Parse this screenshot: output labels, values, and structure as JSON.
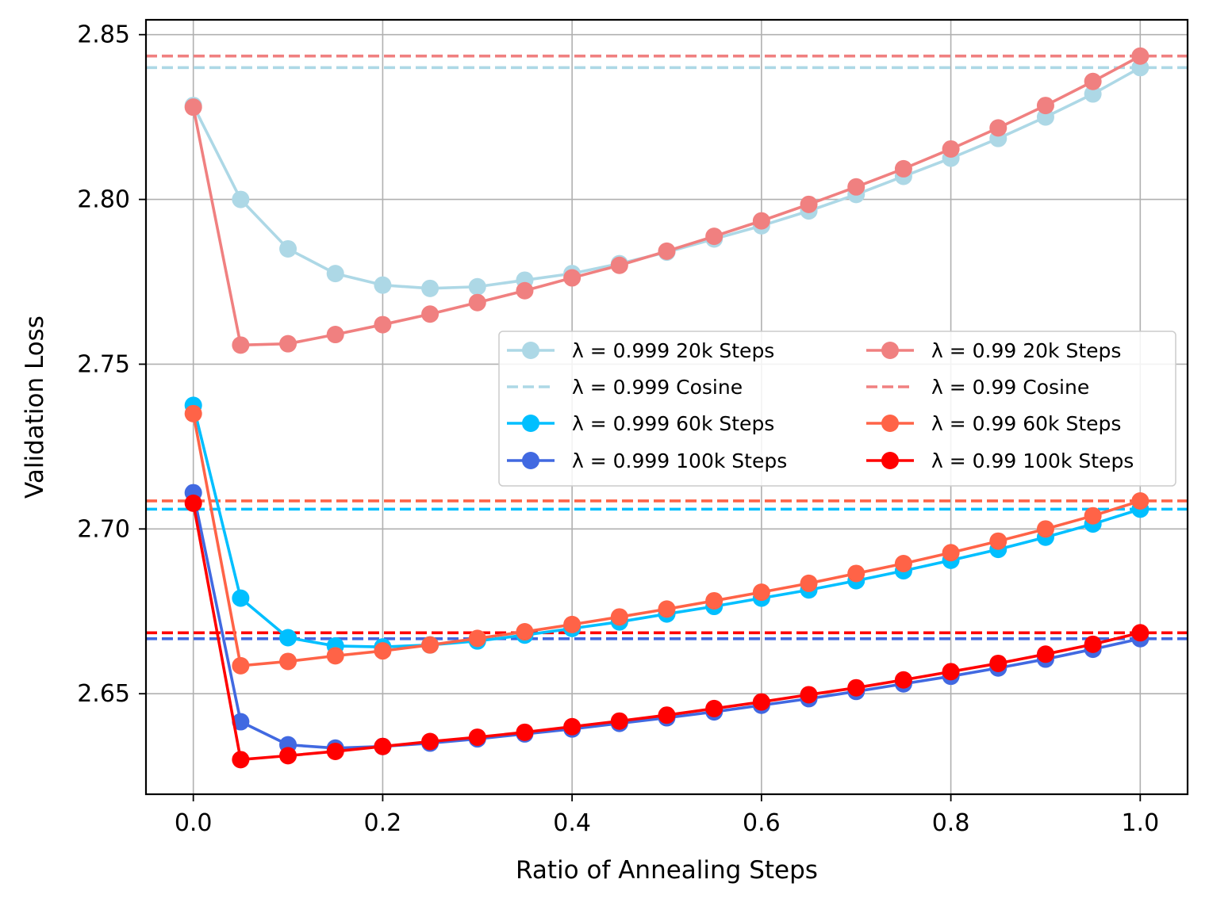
{
  "chart_data": {
    "type": "line",
    "title": "",
    "xlabel": "Ratio of Annealing Steps",
    "ylabel": "Validation Loss",
    "xlim": [
      -0.05,
      1.05
    ],
    "ylim": [
      2.6195,
      2.8545
    ],
    "grid": true,
    "legend_position": "center-right",
    "legend_columns": 2,
    "x_ticks": [
      0.0,
      0.2,
      0.4,
      0.6,
      0.8,
      1.0
    ],
    "x_tick_labels": [
      "0.0",
      "0.2",
      "0.4",
      "0.6",
      "0.8",
      "1.0"
    ],
    "y_ticks": [
      2.65,
      2.7,
      2.75,
      2.8,
      2.85
    ],
    "y_tick_labels": [
      "2.65",
      "2.70",
      "2.75",
      "2.80",
      "2.85"
    ],
    "x": [
      0.0,
      0.05,
      0.1,
      0.15,
      0.2,
      0.25,
      0.3,
      0.35,
      0.4,
      0.45,
      0.5,
      0.55,
      0.6,
      0.65,
      0.7,
      0.75,
      0.8,
      0.85,
      0.9,
      0.95,
      1.0
    ],
    "series": [
      {
        "name": "λ = 0.999 20k Steps",
        "lambda": "0.999",
        "suffix": "20k Steps",
        "color": "#add8e6",
        "style": "line-marker",
        "values": [
          2.8285,
          2.8,
          2.785,
          2.7775,
          2.774,
          2.773,
          2.7735,
          2.7755,
          2.7775,
          2.7805,
          2.784,
          2.788,
          2.792,
          2.7965,
          2.8015,
          2.807,
          2.8125,
          2.8185,
          2.825,
          2.832,
          2.84
        ]
      },
      {
        "name": "λ = 0.99 20k Steps",
        "lambda": "0.99",
        "suffix": "20k Steps",
        "color": "#f08080",
        "style": "line-marker",
        "values": [
          2.828,
          2.7558,
          2.7562,
          2.759,
          2.762,
          2.7652,
          2.7687,
          2.7723,
          2.7762,
          2.78,
          2.7843,
          2.7888,
          2.7935,
          2.7985,
          2.8038,
          2.8093,
          2.8153,
          2.8217,
          2.8285,
          2.8358,
          2.8435
        ]
      },
      {
        "name": "λ = 0.999 Cosine",
        "lambda": "0.999",
        "suffix": "Cosine",
        "color": "#add8e6",
        "style": "dashed",
        "value": 2.84
      },
      {
        "name": "λ = 0.99 Cosine",
        "lambda": "0.99",
        "suffix": "Cosine",
        "color": "#f08080",
        "style": "dashed",
        "value": 2.8435
      },
      {
        "name": "λ = 0.999 60k Steps",
        "lambda": "0.999",
        "suffix": "60k Steps",
        "color": "#00bfff",
        "style": "line-marker",
        "values": [
          2.7375,
          2.679,
          2.667,
          2.6645,
          2.6642,
          2.6648,
          2.666,
          2.6678,
          2.6698,
          2.6718,
          2.6742,
          2.6765,
          2.679,
          2.6815,
          2.6843,
          2.6873,
          2.6905,
          2.6938,
          2.6975,
          2.7015,
          2.706
        ]
      },
      {
        "name": "λ = 0.99 60k Steps",
        "lambda": "0.99",
        "suffix": "60k Steps",
        "color": "#ff6347",
        "style": "line-marker",
        "values": [
          2.735,
          2.6585,
          2.6598,
          2.6615,
          2.663,
          2.6648,
          2.6668,
          2.6688,
          2.671,
          2.6733,
          2.6757,
          2.6782,
          2.6808,
          2.6835,
          2.6865,
          2.6895,
          2.6928,
          2.6963,
          2.7,
          2.704,
          2.7085
        ]
      },
      {
        "name": "λ = 0.999 100k Steps",
        "lambda": "0.999",
        "suffix": "100k Steps",
        "color": "#4169e1",
        "style": "line-marker",
        "values": [
          2.711,
          2.6415,
          2.6345,
          2.6335,
          2.634,
          2.635,
          2.6363,
          2.6378,
          2.6393,
          2.641,
          2.6427,
          2.6445,
          2.6465,
          2.6485,
          2.6507,
          2.653,
          2.6553,
          2.6578,
          2.6605,
          2.6635,
          2.6667
        ]
      },
      {
        "name": "λ = 0.99 100k Steps",
        "lambda": "0.99",
        "suffix": "100k Steps",
        "color": "#ff0000",
        "style": "line-marker",
        "values": [
          2.7078,
          2.63,
          2.6312,
          2.6325,
          2.634,
          2.6355,
          2.6368,
          2.6383,
          2.64,
          2.6417,
          2.6435,
          2.6455,
          2.6475,
          2.6497,
          2.6518,
          2.6542,
          2.6567,
          2.6592,
          2.662,
          2.665,
          2.6685
        ]
      },
      {
        "name": "λ = 0.999 60k Cosine",
        "color": "#00bfff",
        "style": "dashed",
        "value": 2.706,
        "in_legend": false
      },
      {
        "name": "λ = 0.99 60k Cosine",
        "color": "#ff6347",
        "style": "dashed",
        "value": 2.7085,
        "in_legend": false
      },
      {
        "name": "λ = 0.999 100k Cosine",
        "color": "#4169e1",
        "style": "dashed",
        "value": 2.6667,
        "in_legend": false
      },
      {
        "name": "λ = 0.99 100k Cosine",
        "color": "#ff0000",
        "style": "dashed",
        "value": 2.6685,
        "in_legend": false
      }
    ],
    "legend": [
      [
        "λ = 0.999 20k Steps",
        "λ = 0.99 20k Steps"
      ],
      [
        "λ = 0.999 Cosine",
        "λ = 0.99 Cosine"
      ],
      [
        "λ = 0.999 60k Steps",
        "λ = 0.99 60k Steps"
      ],
      [
        "λ = 0.999 100k Steps",
        "λ = 0.99 100k Steps"
      ]
    ]
  }
}
